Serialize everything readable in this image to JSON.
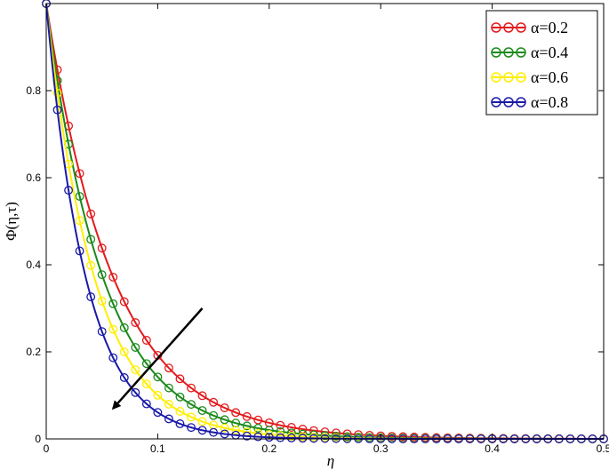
{
  "chart_data": {
    "type": "line",
    "xlabel": "η",
    "ylabel": "Φ(η,τ)",
    "xlim": [
      0,
      0.5
    ],
    "ylim": [
      0,
      1
    ],
    "x_ticks": [
      "0",
      "0.1",
      "0.2",
      "0.3",
      "0.4",
      "0.5"
    ],
    "y_ticks": [
      "0",
      "0.2",
      "0.4",
      "0.6",
      "0.8"
    ],
    "grid": false,
    "legend_position": "top-right",
    "marker": "open-circle",
    "series": [
      {
        "name": "α=0.2",
        "color": "#e41a1c",
        "decay": 16.5
      },
      {
        "name": "α=0.4",
        "color": "#1a8a1a",
        "decay": 19.5
      },
      {
        "name": "α=0.6",
        "color": "#ffee00",
        "decay": 23.0
      },
      {
        "name": "α=0.8",
        "color": "#1a1aa8",
        "decay": 28.0
      }
    ],
    "x": [
      0,
      0.01,
      0.02,
      0.03,
      0.04,
      0.05,
      0.06,
      0.07,
      0.08,
      0.09,
      0.1,
      0.11,
      0.12,
      0.13,
      0.14,
      0.15,
      0.16,
      0.17,
      0.18,
      0.19,
      0.2,
      0.21,
      0.22,
      0.23,
      0.24,
      0.25,
      0.26,
      0.27,
      0.28,
      0.29,
      0.3,
      0.31,
      0.32,
      0.33,
      0.34,
      0.35,
      0.36,
      0.37,
      0.38,
      0.39,
      0.4,
      0.41,
      0.42,
      0.43,
      0.44,
      0.45,
      0.46,
      0.47,
      0.48,
      0.49,
      0.5
    ],
    "annotation": {
      "type": "arrow",
      "from": [
        0.14,
        0.3
      ],
      "to": [
        0.06,
        0.07
      ],
      "meaning": "increasing α"
    }
  }
}
